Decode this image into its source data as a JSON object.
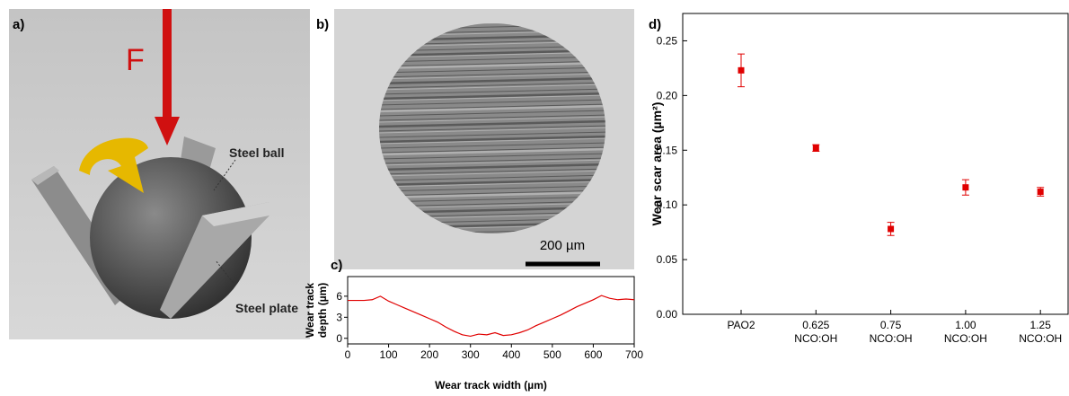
{
  "panels": {
    "a": {
      "label": "a)",
      "force_label": "F",
      "ball_label": "Steel ball",
      "plate_label": "Steel plate"
    },
    "b": {
      "label": "b)",
      "scale_bar_label": "200 µm"
    }
  },
  "chart_data": [
    {
      "type": "line",
      "panel_label": "c)",
      "x_label": "Wear track width (µm)",
      "y_label": [
        "Wear track",
        "depth (µm)"
      ],
      "color": "#e00000",
      "x": [
        0,
        20,
        40,
        60,
        80,
        100,
        120,
        140,
        160,
        180,
        200,
        220,
        240,
        260,
        280,
        300,
        320,
        340,
        360,
        380,
        400,
        420,
        440,
        460,
        480,
        500,
        520,
        540,
        560,
        580,
        600,
        620,
        640,
        660,
        680,
        700
      ],
      "values": [
        5.4,
        5.4,
        5.4,
        5.5,
        6.0,
        5.3,
        4.8,
        4.3,
        3.8,
        3.3,
        2.8,
        2.3,
        1.6,
        1.0,
        0.5,
        0.3,
        0.6,
        0.5,
        0.8,
        0.4,
        0.5,
        0.8,
        1.2,
        1.8,
        2.3,
        2.8,
        3.3,
        3.9,
        4.5,
        5.0,
        5.5,
        6.1,
        5.7,
        5.5,
        5.6,
        5.5
      ],
      "xlim": [
        0,
        700
      ],
      "xticks": [
        0,
        100,
        200,
        300,
        400,
        500,
        600,
        700
      ],
      "ylim": [
        -0.8,
        8.8
      ],
      "yticks": [
        0,
        3,
        6
      ]
    },
    {
      "type": "scatter",
      "panel_label": "d)",
      "y_label": "Wear scar area (µm²)",
      "color": "#e00000",
      "categories": [
        [
          "PAO2"
        ],
        [
          "0.625",
          "NCO:OH"
        ],
        [
          "0.75",
          "NCO:OH"
        ],
        [
          "1.00",
          "NCO:OH"
        ],
        [
          "1.25",
          "NCO:OH"
        ]
      ],
      "values": [
        0.223,
        0.152,
        0.078,
        0.116,
        0.112
      ],
      "errors": [
        0.015,
        0.003,
        0.006,
        0.007,
        0.004
      ],
      "ylim": [
        0,
        0.275
      ],
      "yticks": [
        {
          "value": 0,
          "label": "0.00"
        },
        {
          "value": 0.05,
          "label": "0.05"
        },
        {
          "value": 0.1,
          "label": "0.10"
        },
        {
          "value": 0.15,
          "label": "0.15"
        },
        {
          "value": 0.2,
          "label": "0.20"
        },
        {
          "value": 0.25,
          "label": "0.25"
        }
      ]
    }
  ]
}
